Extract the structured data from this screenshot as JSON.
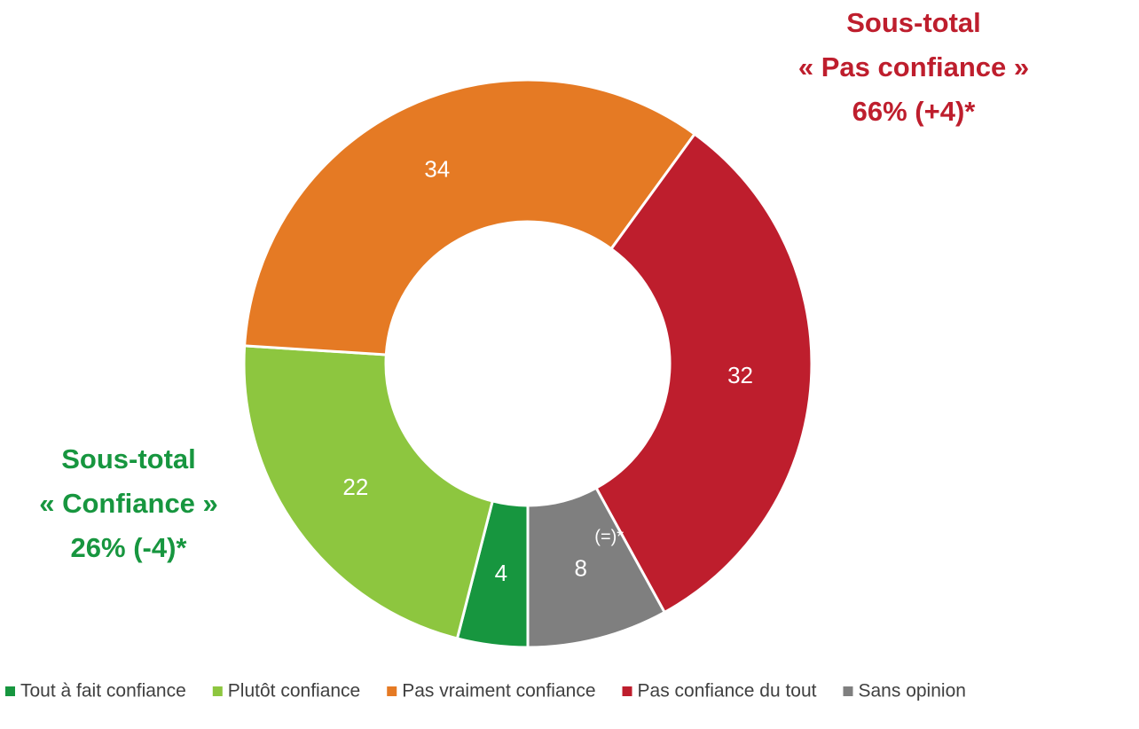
{
  "chart_data": {
    "type": "donut",
    "categories": [
      "Tout à fait confiance",
      "Plutôt confiance",
      "Pas vraiment confiance",
      "Pas confiance du tout",
      "Sans opinion"
    ],
    "values": [
      4,
      22,
      34,
      32,
      8
    ],
    "colors": [
      "#17963f",
      "#8dc63f",
      "#e57a24",
      "#be1e2d",
      "#7f7f7f"
    ],
    "annotations": [
      {
        "lines": [
          "Sous-total",
          "« Pas confiance »",
          "66% (+4)*"
        ],
        "color": "#be1e2d"
      },
      {
        "lines": [
          "Sous-total",
          "« Confiance »",
          "26% (-4)*"
        ],
        "color": "#17963f"
      },
      {
        "text": "(=)*"
      }
    ],
    "legend": "bottom"
  }
}
